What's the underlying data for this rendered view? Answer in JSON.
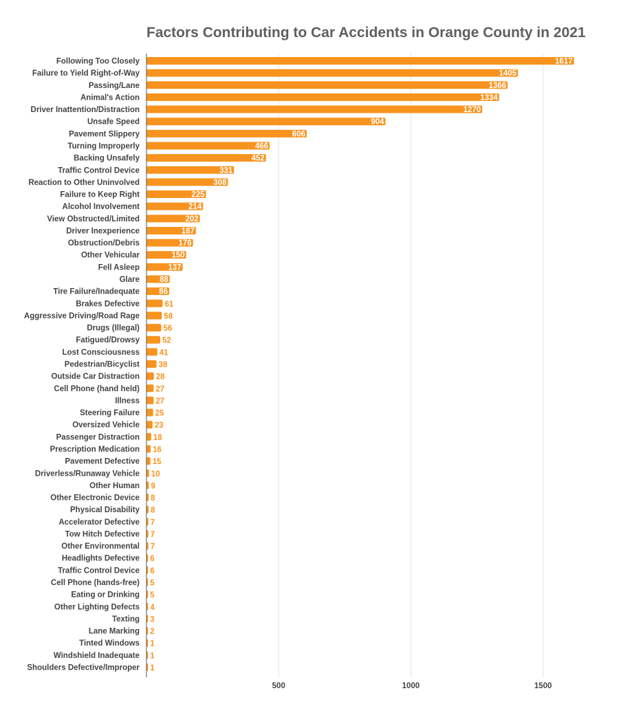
{
  "chart_data": {
    "type": "bar",
    "orientation": "horizontal",
    "title": "Factors Contributing to Car Accidents in Orange County in 2021",
    "xlim": [
      0,
      1620
    ],
    "xticks": [
      500,
      1000,
      1500
    ],
    "grid": true,
    "bar_color": "#f7931e",
    "categories": [
      "Following Too Closely",
      "Failure to Yield Right-of-Way",
      "Passing/Lane",
      "Animal's Action",
      "Driver Inattention/Distraction",
      "Unsafe Speed",
      "Pavement Slippery",
      "Turning Improperly",
      "Backing Unsafely",
      "Traffic Control Device",
      "Reaction to Other Uninvolved",
      "Failure to Keep Right",
      "Alcohol Involvement",
      "View Obstructed/Limited",
      "Driver Inexperience",
      "Obstruction/Debris",
      "Other Vehicular",
      "Fell Asleep",
      "Glare",
      "Tire Failure/Inadequate",
      "Brakes Defective",
      "Aggressive Driving/Road Rage",
      "Drugs (Illegal)",
      "Fatigued/Drowsy",
      "Lost Consciousness",
      "Pedestrian/Bicyclist",
      "Outside Car Distraction",
      "Cell Phone (hand held)",
      "Illness",
      "Steering Failure",
      "Oversized Vehicle",
      "Passenger Distraction",
      "Prescription Medication",
      "Pavement Defective",
      "Driverless/Runaway Vehicle",
      "Other Human",
      "Other Electronic Device",
      "Physical Disability",
      "Accelerator Defective",
      "Tow Hitch Defective",
      "Other Environmental",
      "Headlights Defective",
      "Traffic Control Device",
      "Cell Phone (hands-free)",
      "Eating or Drinking",
      "Other Lighting Defects",
      "Texting",
      "Lane Marking",
      "Tinted Windows",
      "Windshield Inadequate",
      "Shoulders Defective/Improper"
    ],
    "values": [
      1617,
      1405,
      1366,
      1334,
      1270,
      904,
      606,
      466,
      452,
      331,
      308,
      225,
      214,
      202,
      187,
      176,
      150,
      137,
      88,
      86,
      61,
      58,
      56,
      52,
      41,
      38,
      28,
      27,
      27,
      25,
      23,
      18,
      16,
      15,
      10,
      9,
      8,
      8,
      7,
      7,
      7,
      6,
      6,
      5,
      5,
      4,
      3,
      2,
      1,
      1,
      1
    ]
  }
}
